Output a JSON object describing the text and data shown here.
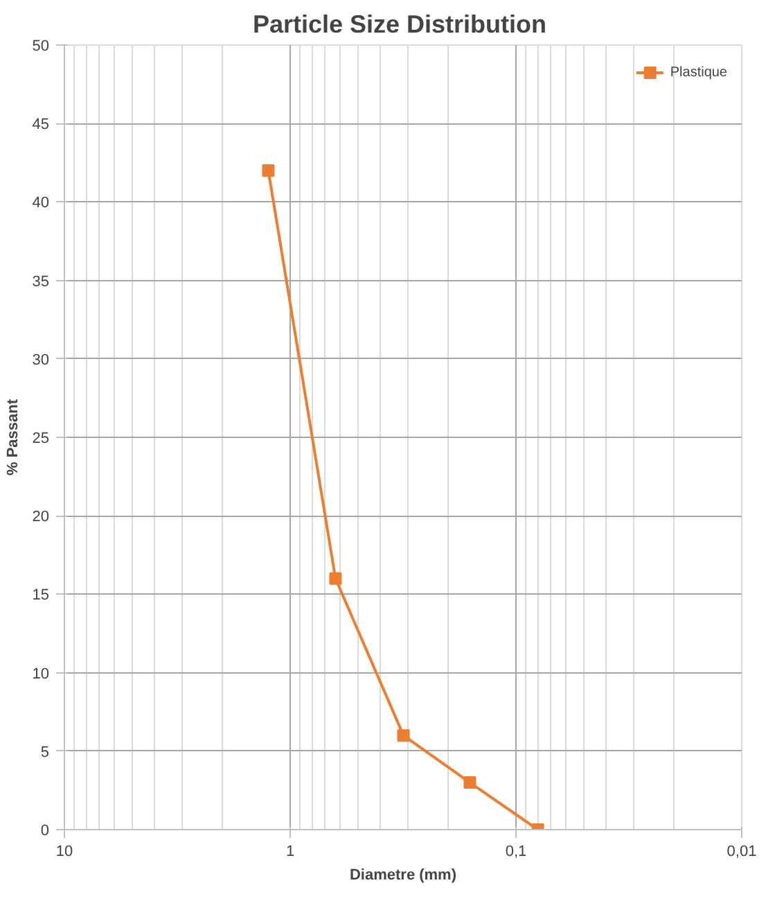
{
  "chart_data": {
    "type": "line",
    "title": "Particle  Size Distribution",
    "xlabel": "Diametre (mm)",
    "ylabel": "% Passant",
    "log": "x",
    "x": [
      1.25,
      0.63,
      0.315,
      0.16,
      0.08
    ],
    "series": [
      {
        "name": "Plastique",
        "color": "#ed7d31",
        "values": [
          42,
          16,
          6,
          3,
          0
        ]
      }
    ],
    "xlim": [
      10,
      0.01
    ],
    "xticks": [
      10,
      1,
      {
        "value": 0.1,
        "label": "0,1"
      },
      {
        "value": 0.01,
        "label": "0,01"
      }
    ],
    "ylim": [
      0,
      50
    ],
    "yticks": [
      0,
      5,
      10,
      15,
      20,
      25,
      30,
      35,
      40,
      45,
      50
    ],
    "grid": true,
    "legend": "top right",
    "marker": "square",
    "line_style": "solid"
  }
}
